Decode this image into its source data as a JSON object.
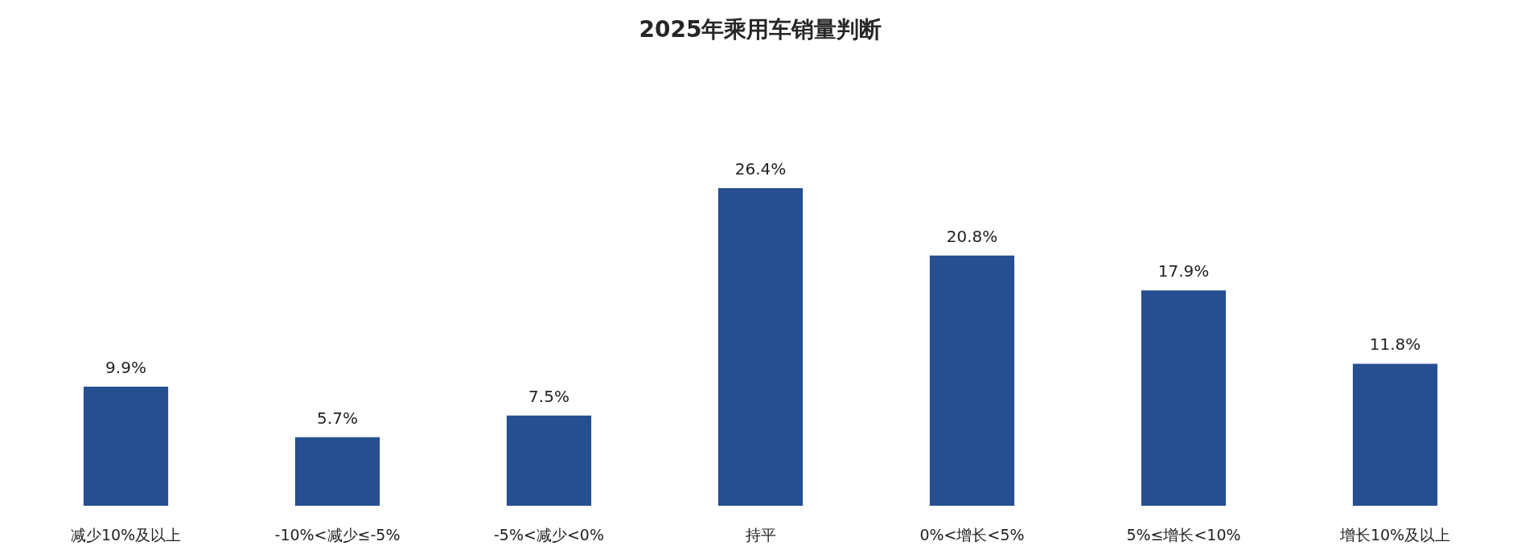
{
  "chart_data": {
    "type": "bar",
    "title": "2025年乘用车销量判断",
    "categories": [
      "减少10%及以上",
      "-10%<减少≤-5%",
      "-5%<减少<0%",
      "持平",
      "0%<增长<5%",
      "5%≤增长<10%",
      "增长10%及以上"
    ],
    "values": [
      9.9,
      5.7,
      7.5,
      26.4,
      20.8,
      17.9,
      11.8
    ],
    "value_labels": [
      "9.9%",
      "5.7%",
      "7.5%",
      "26.4%",
      "20.8%",
      "17.9%",
      "11.8%"
    ],
    "color": "#264f91"
  }
}
